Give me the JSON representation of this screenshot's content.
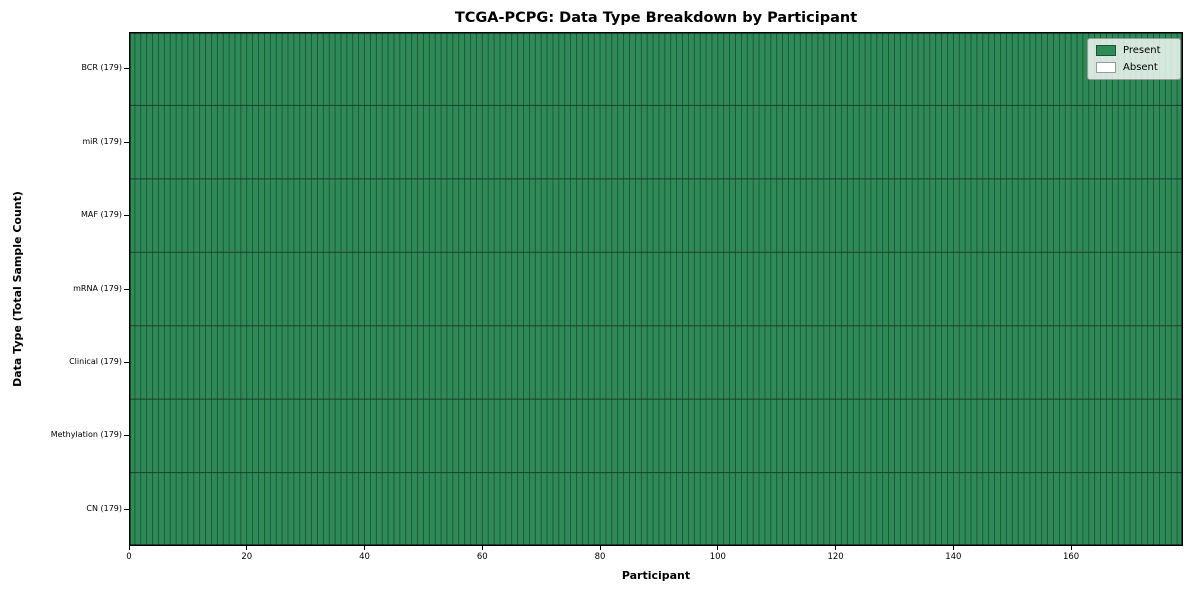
{
  "figure": {
    "title": "TCGA-PCPG: Data Type Breakdown by Participant",
    "x_axis_label": "Participant",
    "y_axis_label": "Data Type (Total Sample Count)",
    "background_color": "#ffffff"
  },
  "legend": {
    "position": "upper right",
    "items": [
      {
        "label": "Present",
        "color": "#2e8b57"
      },
      {
        "label": "Absent",
        "color": "#ffffff"
      }
    ]
  },
  "chart_data": {
    "type": "heatmap",
    "title": "TCGA-PCPG: Data Type Breakdown by Participant",
    "xlabel": "Participant",
    "ylabel": "Data Type (Total Sample Count)",
    "x_range": [
      0,
      179
    ],
    "x_ticks": [
      0,
      20,
      40,
      60,
      80,
      100,
      120,
      140,
      160
    ],
    "n_participants": 179,
    "row_order_top_to_bottom": [
      "BCR",
      "miR",
      "MAF",
      "mRNA",
      "Clinical",
      "Methylation",
      "CN"
    ],
    "rows": [
      {
        "label": "BCR (179)",
        "data_type": "BCR",
        "total_sample_count": 179,
        "present_count": 179,
        "absent_count": 0
      },
      {
        "label": "miR (179)",
        "data_type": "miR",
        "total_sample_count": 179,
        "present_count": 179,
        "absent_count": 0
      },
      {
        "label": "MAF (179)",
        "data_type": "MAF",
        "total_sample_count": 179,
        "present_count": 179,
        "absent_count": 0
      },
      {
        "label": "mRNA (179)",
        "data_type": "mRNA",
        "total_sample_count": 179,
        "present_count": 179,
        "absent_count": 0
      },
      {
        "label": "Clinical (179)",
        "data_type": "Clinical",
        "total_sample_count": 179,
        "present_count": 179,
        "absent_count": 0
      },
      {
        "label": "Methylation (179)",
        "data_type": "Methylation",
        "total_sample_count": 179,
        "present_count": 179,
        "absent_count": 0
      },
      {
        "label": "CN (179)",
        "data_type": "CN",
        "total_sample_count": 179,
        "present_count": 179,
        "absent_count": 0
      }
    ],
    "all_cells_present": true,
    "cell_value_legend": {
      "present": 1,
      "absent": 0
    },
    "grid": "per-cell borders, no inner gridlines beyond cell edges",
    "legend_position": "upper right",
    "colors": {
      "present": "#2e8b57",
      "absent": "#ffffff",
      "cell_edge": "#1f4a36",
      "row_divider": "#1b3f2e",
      "spine": "#000000"
    }
  }
}
